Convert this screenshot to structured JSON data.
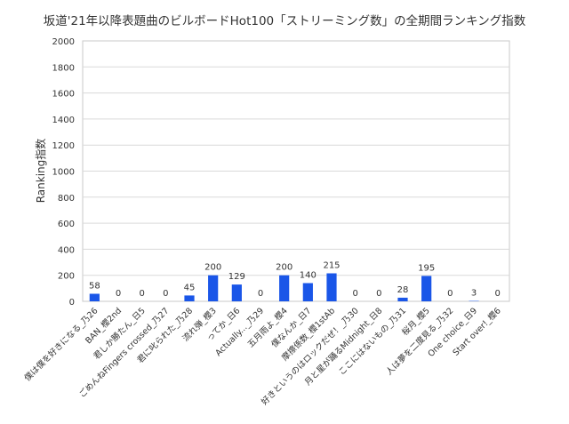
{
  "chart_data": {
    "type": "bar",
    "title": "坂道'21年以降表題曲のビルボードHot100「ストリーミング数」の全期間ランキング指数",
    "xlabel": "",
    "ylabel": "Ranking指数",
    "ylim": [
      0,
      2000
    ],
    "yticks": [
      0,
      200,
      400,
      600,
      800,
      1000,
      1200,
      1400,
      1600,
      1800,
      2000
    ],
    "grid": true,
    "legend": "none",
    "bar_color": "#1a56e8",
    "categories": [
      "僕は僕を好きになる_乃26",
      "BAN_櫻2nd",
      "君しか勝たん_日5",
      "ごめんねFingers crossed_乃27",
      "君に叱られた_乃28",
      "流れ弾_櫻3",
      "ってか_日6",
      "Actually..._乃29",
      "五月雨よ_櫻4",
      "僕なんか_日7",
      "摩擦係数_櫻1stAb",
      "好きというのはロックだぜ！_乃30",
      "月と星が踊るMidnight_日8",
      "ここにはないもの_乃31",
      "桜月_櫻5",
      "人は夢を二度見る_乃32",
      "One choice_日9",
      "Start over!_櫻6"
    ],
    "values": [
      58,
      0,
      0,
      0,
      45,
      200,
      129,
      0,
      200,
      140,
      215,
      0,
      0,
      28,
      195,
      0,
      3,
      0
    ],
    "data_labels": [
      "58",
      "0",
      "0",
      "0",
      "45",
      "200",
      "129",
      "0",
      "200",
      "140",
      "215",
      "0",
      "0",
      "28",
      "195",
      "0",
      "3",
      "0"
    ]
  }
}
